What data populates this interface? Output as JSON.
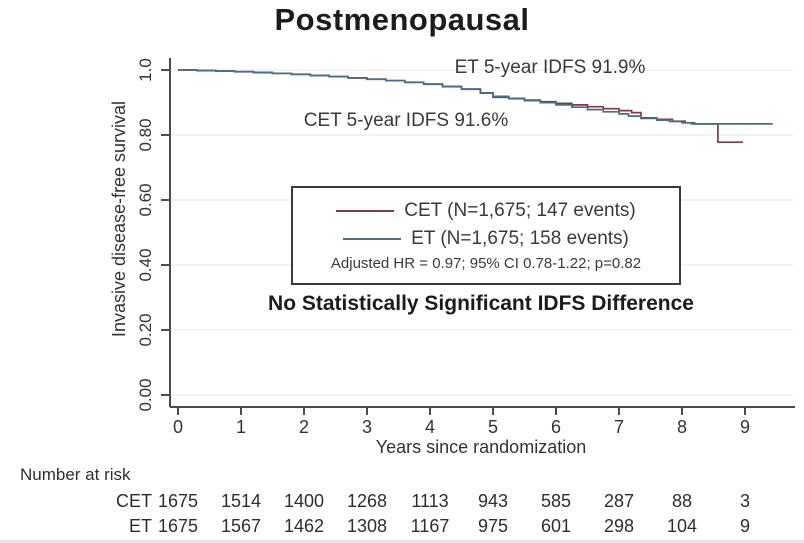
{
  "title": "Postmenopausal",
  "note": "No Statistically Significant IDFS Difference",
  "colors": {
    "grid": "#ebebeb",
    "axis": "#4c4c4c",
    "cet_line": "#7e3d45",
    "et_line": "#4f6b88"
  },
  "legend": {
    "entries": [
      {
        "name": "CET",
        "label": "CET (N=1,675; 147 events)",
        "color": "#7e3d45"
      },
      {
        "name": "ET",
        "label": "ET (N=1,675; 158 events)",
        "color": "#4f6b88"
      }
    ],
    "stat_line": "Adjusted HR = 0.97; 95% CI 0.78-1.22; p=0.82"
  },
  "chart_data": {
    "type": "line",
    "subtype": "kaplan-meier-step",
    "title": "Postmenopausal",
    "xlabel": "Years since randomization",
    "ylabel": "Invasive disease-free survival",
    "xlim": [
      0,
      9.7
    ],
    "ylim": [
      0,
      1.0
    ],
    "grid": "horizontal light-gray lines at each y tick",
    "legend_position": "center of plot, boxed",
    "xticks": [
      0,
      1,
      2,
      3,
      4,
      5,
      6,
      7,
      8,
      9
    ],
    "ytick_values": [
      0,
      0.2,
      0.4,
      0.6,
      0.8,
      1.0
    ],
    "ytick_labels": [
      "0.00",
      "0.20",
      "0.40",
      "0.60",
      "0.80",
      "1.0"
    ],
    "series": [
      {
        "name": "CET",
        "color": "#7e3d45",
        "five_year_idfs": "91.6%",
        "points": [
          [
            0,
            1.0
          ],
          [
            0.3,
            0.998
          ],
          [
            0.6,
            0.9965
          ],
          [
            0.9,
            0.9945
          ],
          [
            1.2,
            0.992
          ],
          [
            1.5,
            0.9895
          ],
          [
            1.8,
            0.9865
          ],
          [
            2.1,
            0.983
          ],
          [
            2.4,
            0.9795
          ],
          [
            2.7,
            0.9755
          ],
          [
            3.0,
            0.9715
          ],
          [
            3.3,
            0.967
          ],
          [
            3.6,
            0.962
          ],
          [
            3.9,
            0.956
          ],
          [
            4.2,
            0.949
          ],
          [
            4.5,
            0.9405
          ],
          [
            4.8,
            0.9285
          ],
          [
            5.0,
            0.916
          ],
          [
            5.25,
            0.912
          ],
          [
            5.5,
            0.9075
          ],
          [
            5.75,
            0.9025
          ],
          [
            6.0,
            0.8975
          ],
          [
            6.25,
            0.8925
          ],
          [
            6.5,
            0.887
          ],
          [
            6.75,
            0.881
          ],
          [
            7.0,
            0.875
          ],
          [
            7.2,
            0.869
          ],
          [
            7.35,
            0.853
          ],
          [
            7.6,
            0.848
          ],
          [
            7.85,
            0.8425
          ],
          [
            8.05,
            0.8375
          ],
          [
            8.2,
            0.834
          ],
          [
            8.57,
            0.834
          ],
          [
            8.57,
            0.778
          ],
          [
            8.97,
            0.778
          ]
        ]
      },
      {
        "name": "ET",
        "color": "#4f6b88",
        "five_year_idfs": "91.9%",
        "points": [
          [
            0,
            1.0
          ],
          [
            0.3,
            0.9985
          ],
          [
            0.6,
            0.997
          ],
          [
            0.9,
            0.995
          ],
          [
            1.2,
            0.9925
          ],
          [
            1.5,
            0.99
          ],
          [
            1.8,
            0.987
          ],
          [
            2.1,
            0.9835
          ],
          [
            2.4,
            0.98
          ],
          [
            2.7,
            0.976
          ],
          [
            3.0,
            0.972
          ],
          [
            3.3,
            0.9675
          ],
          [
            3.6,
            0.9625
          ],
          [
            3.9,
            0.957
          ],
          [
            4.2,
            0.95
          ],
          [
            4.5,
            0.9415
          ],
          [
            4.8,
            0.9295
          ],
          [
            5.0,
            0.919
          ],
          [
            5.25,
            0.9125
          ],
          [
            5.5,
            0.906
          ],
          [
            5.75,
            0.8995
          ],
          [
            6.0,
            0.8925
          ],
          [
            6.25,
            0.8855
          ],
          [
            6.5,
            0.878
          ],
          [
            6.75,
            0.8715
          ],
          [
            7.0,
            0.865
          ],
          [
            7.15,
            0.858
          ],
          [
            7.35,
            0.851
          ],
          [
            7.6,
            0.8455
          ],
          [
            7.8,
            0.8415
          ],
          [
            8.0,
            0.8375
          ],
          [
            8.15,
            0.834
          ],
          [
            9.44,
            0.834
          ]
        ]
      }
    ],
    "annotations": [
      {
        "text": "ET 5-year IDFS 91.9%",
        "x_center_year": 5.9,
        "y_value": 1.0
      },
      {
        "text": "CET 5-year IDFS 91.6%",
        "x_center_year": 3.62,
        "y_value": 0.84
      }
    ]
  },
  "risk_table": {
    "header": "Number at risk",
    "years": [
      0,
      1,
      2,
      3,
      4,
      5,
      6,
      7,
      8,
      9
    ],
    "rows": [
      {
        "label": "CET",
        "values": [
          "1675",
          "1514",
          "1400",
          "1268",
          "1113",
          "943",
          "585",
          "287",
          "88",
          "3"
        ]
      },
      {
        "label": "ET",
        "values": [
          "1675",
          "1567",
          "1462",
          "1308",
          "1167",
          "975",
          "601",
          "298",
          "104",
          "9"
        ]
      }
    ]
  }
}
